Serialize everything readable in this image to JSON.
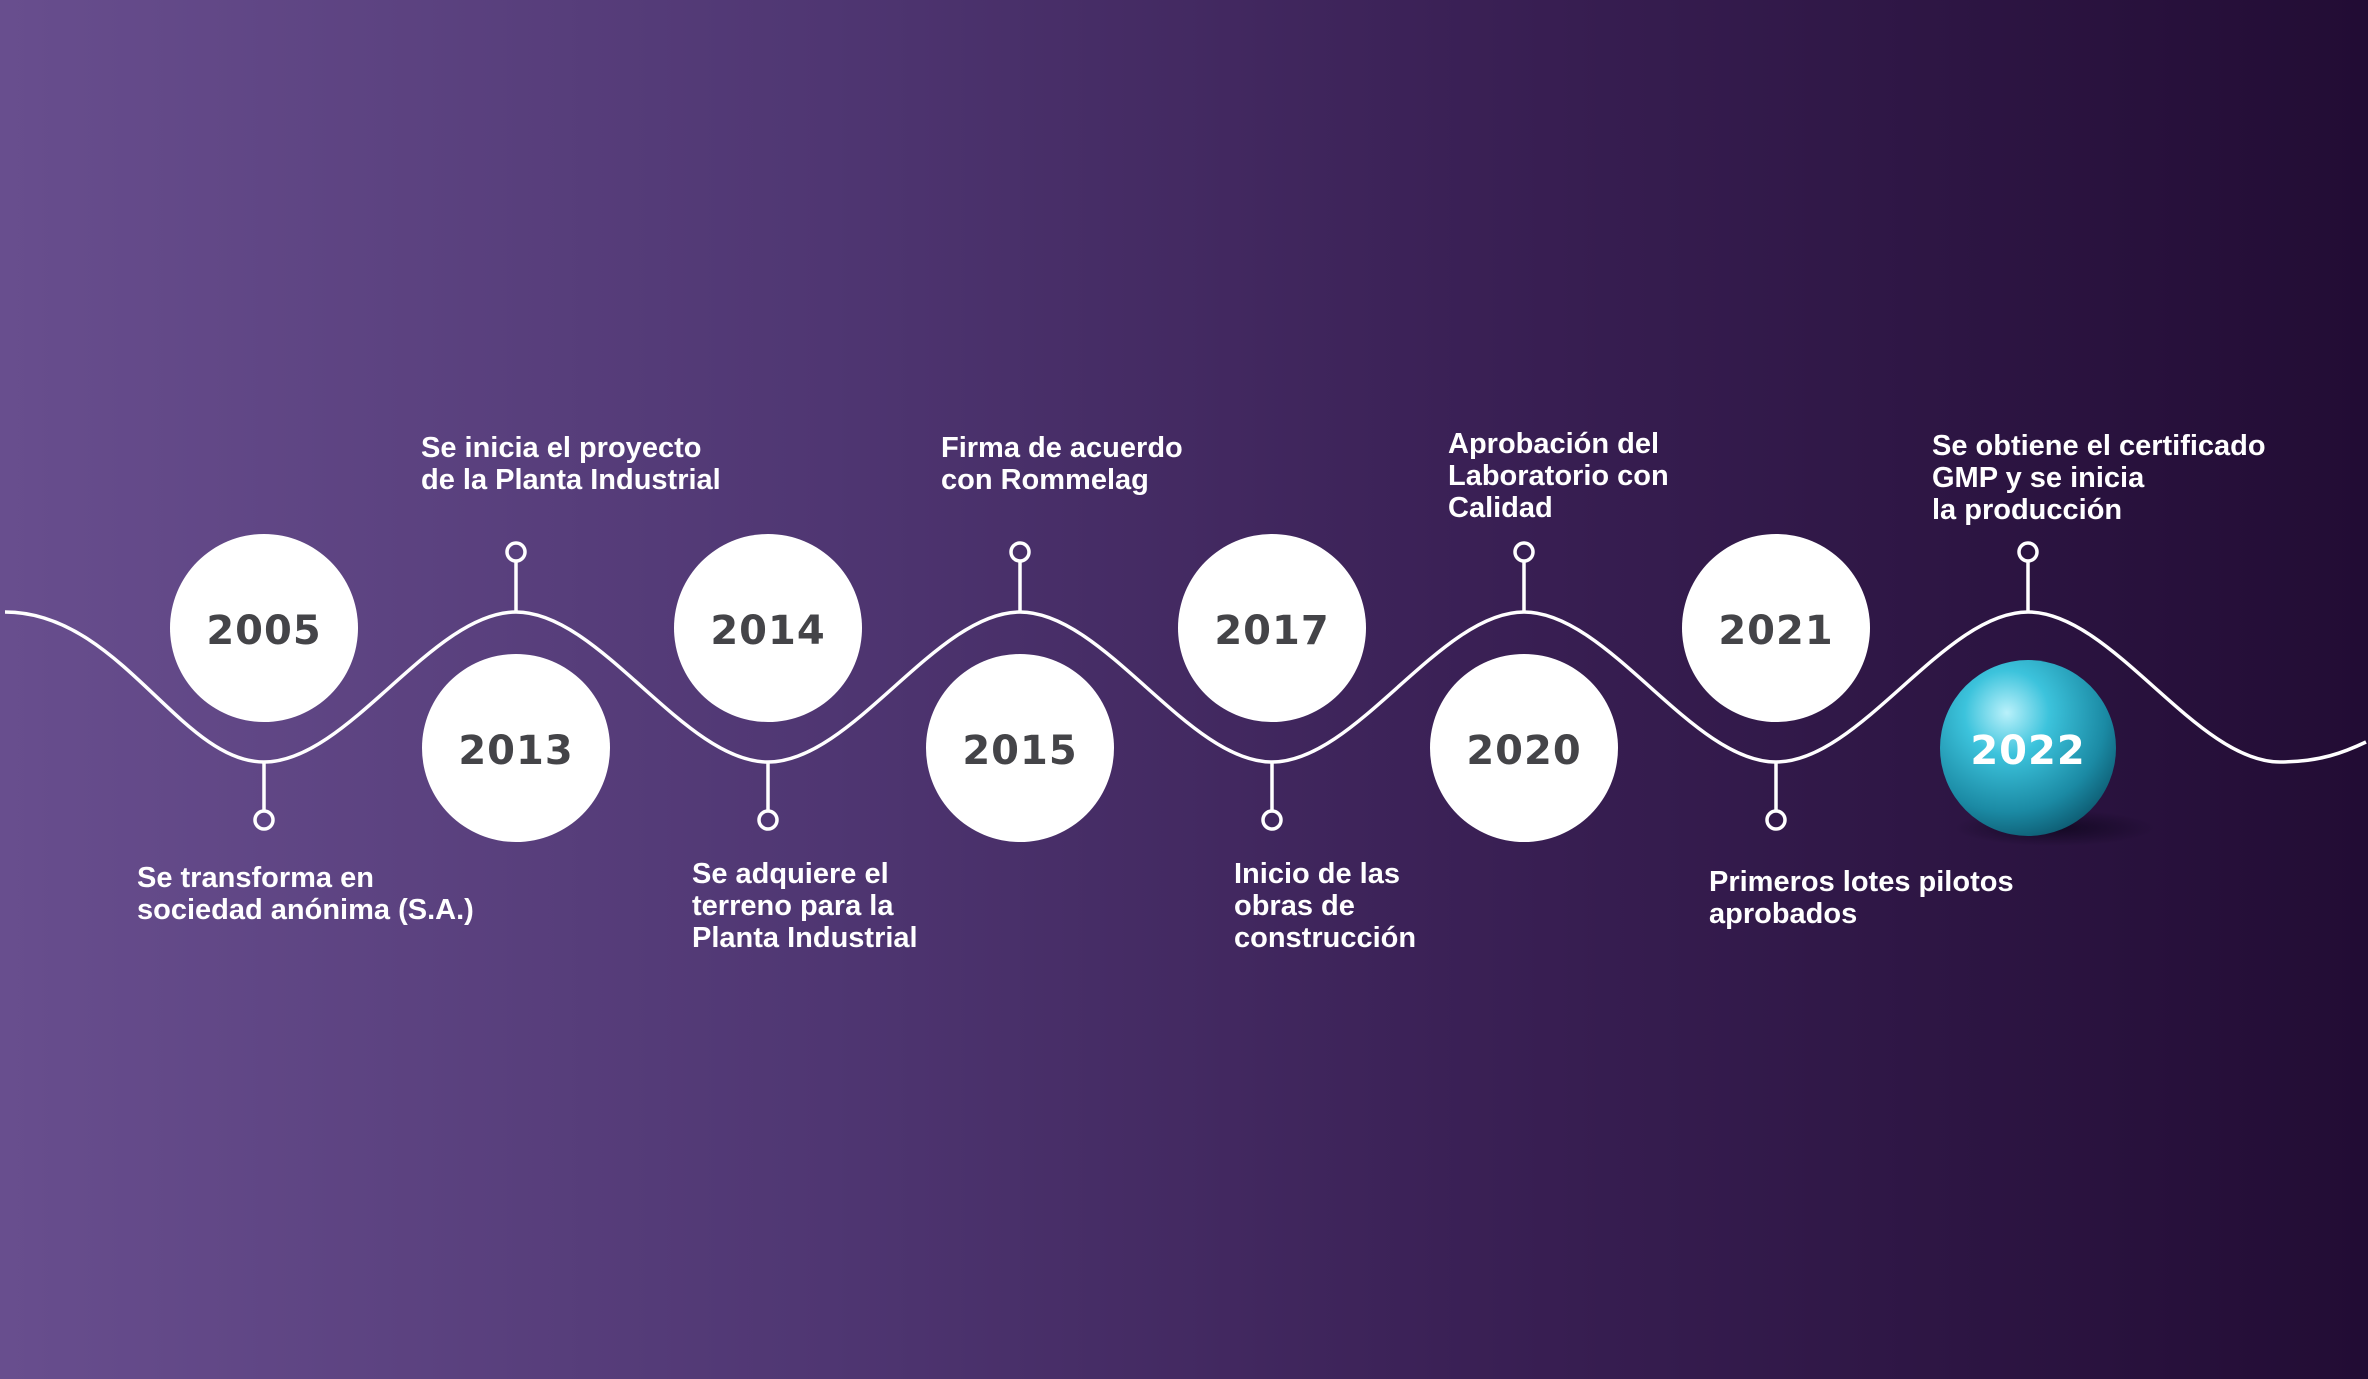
{
  "milestones": [
    {
      "year": "2005",
      "caption": "Se transforma en\nsociedad anónima (S.A.)"
    },
    {
      "year": "2013",
      "caption": "Se inicia el proyecto\nde la Planta Industrial"
    },
    {
      "year": "2014",
      "caption": "Se adquiere el\nterreno para la\nPlanta Industrial"
    },
    {
      "year": "2015",
      "caption": "Firma de acuerdo\ncon Rommelag"
    },
    {
      "year": "2017",
      "caption": "Inicio de las\nobras de\nconstrucción"
    },
    {
      "year": "2020",
      "caption": "Aprobación del\nLaboratorio con\nCalidad"
    },
    {
      "year": "2021",
      "caption": "Primeros lotes pilotos\naprobados"
    },
    {
      "year": "2022",
      "caption": "Se obtiene el certificado\nGMP y se inicia\nla producción"
    }
  ],
  "colors": {
    "circle": "#ffffff",
    "year_text": "#444448",
    "highlight_sphere": "#2cb2cf",
    "line": "#ffffff"
  }
}
